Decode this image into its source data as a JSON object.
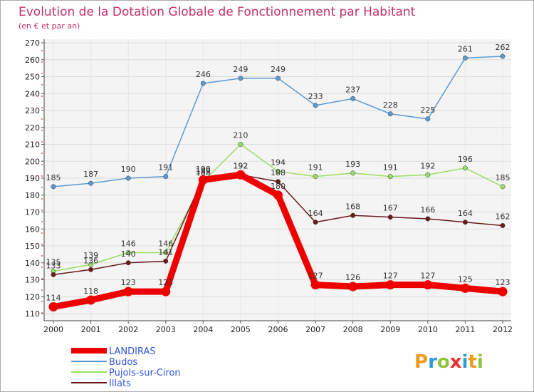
{
  "chart_data": {
    "type": "line",
    "title": "Evolution de la Dotation Globale de Fonctionnement par Habitant",
    "subtitle": "(en € et par an)",
    "xlabel": "",
    "ylabel": "",
    "categories": [
      "2000",
      "2001",
      "2002",
      "2003",
      "2004",
      "2005",
      "2006",
      "2007",
      "2008",
      "2009",
      "2010",
      "2011",
      "2012"
    ],
    "ylim": [
      110,
      270
    ],
    "yticks": [
      110,
      120,
      130,
      140,
      150,
      160,
      170,
      180,
      190,
      200,
      210,
      220,
      230,
      240,
      250,
      260,
      270
    ],
    "grid": true,
    "legend": "bottom-left",
    "series": [
      {
        "name": "LANDIRAS",
        "color": "#ee0000",
        "values": [
          114,
          118,
          123,
          123,
          189,
          192,
          180,
          127,
          126,
          127,
          127,
          125,
          123
        ]
      },
      {
        "name": "Budos",
        "color": "#5c9bd1",
        "values": [
          185,
          187,
          190,
          191,
          246,
          249,
          249,
          233,
          237,
          228,
          225,
          261,
          262
        ]
      },
      {
        "name": "Pujols-sur-Ciron",
        "color": "#99dd66",
        "values": [
          135,
          139,
          146,
          146,
          188,
          210,
          194,
          191,
          193,
          191,
          192,
          196,
          185
        ]
      },
      {
        "name": "Illats",
        "color": "#6b1a1a",
        "values": [
          133,
          136,
          140,
          141,
          190,
          192,
          188,
          164,
          168,
          167,
          166,
          164,
          162
        ]
      }
    ]
  },
  "brand": {
    "logo_text": "Proxiti"
  }
}
